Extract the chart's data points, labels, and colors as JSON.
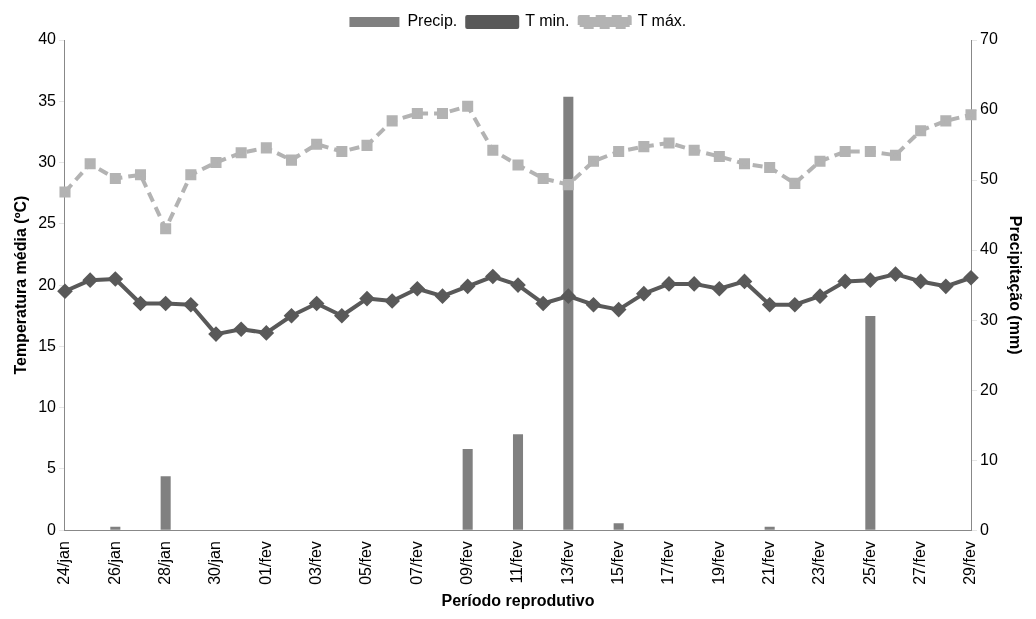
{
  "chart_data": {
    "type": "line",
    "xlabel": "Período reprodutivo",
    "ylabel": "Temperatura média (ºC)",
    "y2label": "Precipitação (mm)",
    "categories": [
      "24/jan",
      null,
      "26/jan",
      null,
      "28/jan",
      null,
      "30/jan",
      null,
      "01/fev",
      null,
      "03/fev",
      null,
      "05/fev",
      null,
      "07/fev",
      null,
      "09/fev",
      null,
      "11/fev",
      null,
      "13/fev",
      null,
      "15/fev",
      null,
      "17/fev",
      null,
      "19/fev",
      null,
      "21/fev",
      null,
      "23/fev",
      null,
      "25/fev",
      null,
      "27/fev",
      null,
      "29/fev"
    ],
    "series": [
      {
        "name": "Precip.",
        "type": "bar",
        "axis": "y2",
        "color": "#808080",
        "values": [
          0,
          0,
          0.5,
          0,
          7.7,
          0,
          0,
          0,
          0,
          0,
          0,
          0,
          0,
          0,
          0,
          0,
          11.6,
          0,
          13.7,
          0,
          61.9,
          0,
          1,
          0,
          0,
          0,
          0,
          0,
          0.5,
          0,
          0,
          0,
          30.6,
          0,
          0,
          0,
          0
        ]
      },
      {
        "name": "T min.",
        "color": "#595959",
        "marker": "diamond",
        "line_style": "solid",
        "values": [
          19.5,
          20.4,
          20.5,
          18.5,
          18.5,
          18.4,
          16.0,
          16.4,
          16.1,
          17.5,
          18.5,
          17.5,
          18.9,
          18.7,
          19.7,
          19.1,
          19.9,
          20.7,
          20.0,
          18.5,
          19.1,
          18.4,
          18.0,
          19.3,
          20.1,
          20.1,
          19.7,
          20.3,
          18.4,
          18.4,
          19.1,
          20.3,
          20.4,
          20.9,
          20.3,
          19.9,
          20.6
        ]
      },
      {
        "name": "T máx.",
        "color": "#b3b3b3",
        "marker": "square",
        "line_style": "dashed",
        "values": [
          27.6,
          29.9,
          28.7,
          29.0,
          24.6,
          29.0,
          30.0,
          30.8,
          31.2,
          30.2,
          31.5,
          30.9,
          31.4,
          33.4,
          34.0,
          34.0,
          34.6,
          31.0,
          29.8,
          28.7,
          28.2,
          30.1,
          30.9,
          31.3,
          31.6,
          31.0,
          30.5,
          29.9,
          29.6,
          28.3,
          30.1,
          30.9,
          30.9,
          30.6,
          32.6,
          33.4,
          33.9
        ]
      }
    ],
    "ylim": [
      0,
      40
    ],
    "yticks": [
      0,
      5,
      10,
      15,
      20,
      25,
      30,
      35,
      40
    ],
    "y2lim": [
      0,
      70
    ],
    "y2ticks": [
      0,
      10,
      20,
      30,
      40,
      50,
      60,
      70
    ],
    "grid": false,
    "legend": "top"
  }
}
